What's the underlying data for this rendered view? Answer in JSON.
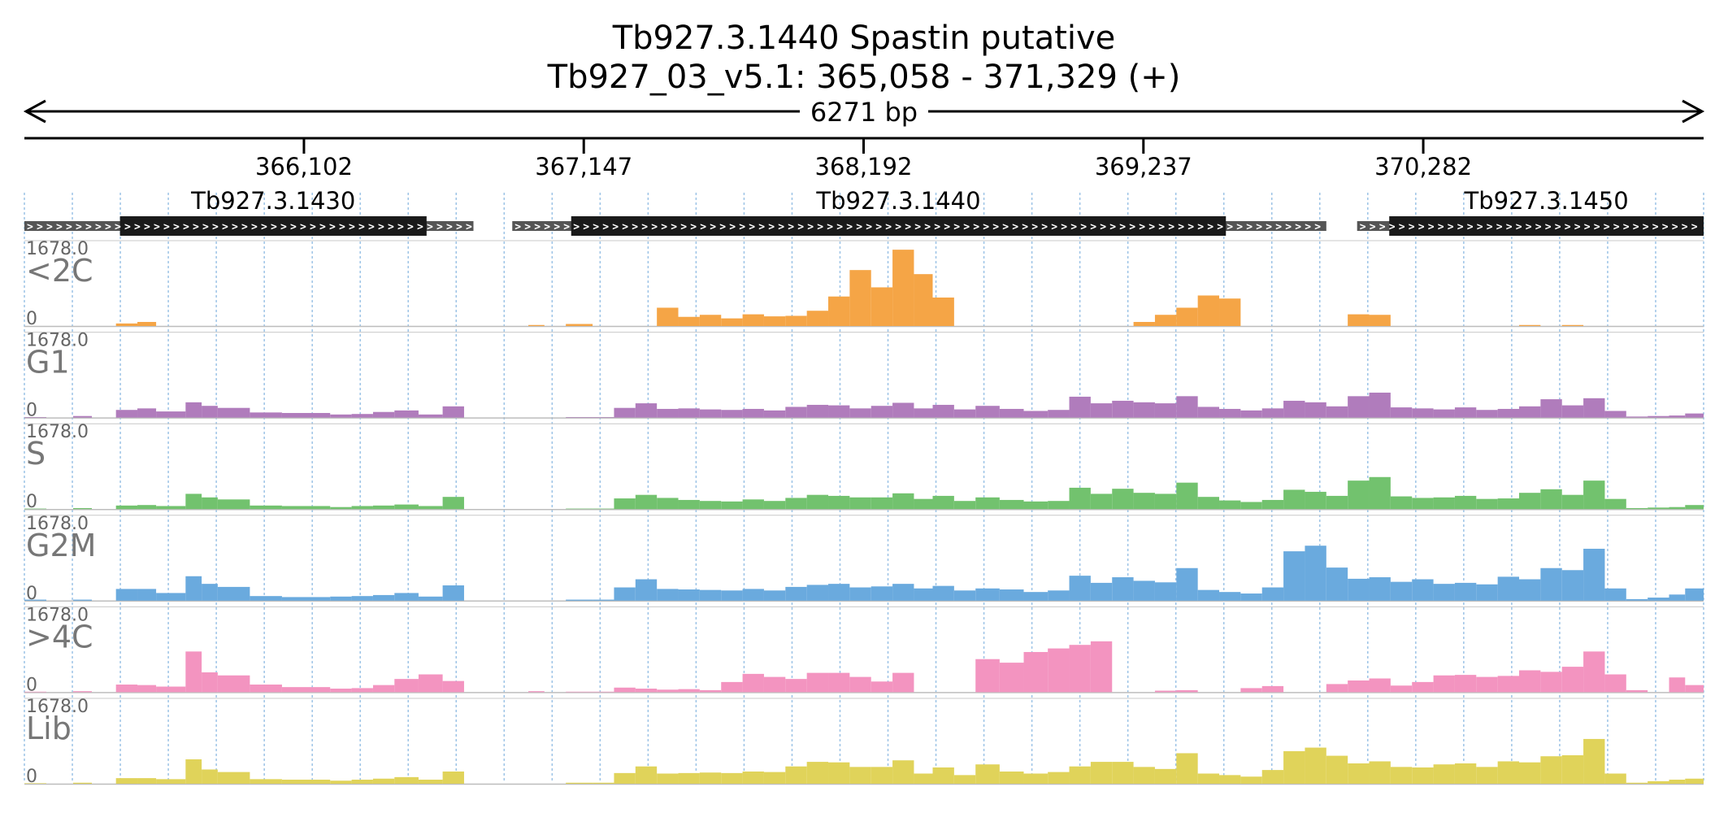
{
  "chart_data": {
    "type": "bar",
    "title": "Tb927.3.1440  Spastin  putative",
    "subtitle": "Tb927_03_v5.1: 365,058 - 371,329 (+)",
    "span_label": "6271 bp",
    "x_range": [
      365058,
      371329
    ],
    "x_ticks": [
      366102,
      367147,
      368192,
      369237,
      370282
    ],
    "x_tick_labels": [
      "366,102",
      "367,147",
      "368,192",
      "369,237",
      "370,282"
    ],
    "genes": [
      {
        "name": "Tb927.3.1430",
        "start": 365058,
        "cds_start": 365415,
        "cds_end": 366560,
        "end": 366735
      },
      {
        "name": "Tb927.3.1440",
        "start": 366880,
        "cds_start": 367100,
        "cds_end": 369545,
        "end": 369920
      },
      {
        "name": "Tb927.3.1450",
        "start": 370035,
        "cds_start": 370155,
        "cds_end": 371329,
        "end": 371329
      }
    ],
    "ylim": [
      0,
      1678.0
    ],
    "y_max_label": "1678.0",
    "y_min_label": "0",
    "segments": [
      {
        "start": 365058,
        "end": 365140
      },
      {
        "start": 365140,
        "end": 365240
      },
      {
        "start": 365240,
        "end": 365310
      },
      {
        "start": 365310,
        "end": 365400
      },
      {
        "start": 365400,
        "end": 365480
      },
      {
        "start": 365480,
        "end": 365550
      },
      {
        "start": 365550,
        "end": 365660
      },
      {
        "start": 365660,
        "end": 365720
      },
      {
        "start": 365720,
        "end": 365780
      },
      {
        "start": 365780,
        "end": 365900
      },
      {
        "start": 365900,
        "end": 366020
      },
      {
        "start": 366020,
        "end": 366200
      },
      {
        "start": 366200,
        "end": 366280
      },
      {
        "start": 366280,
        "end": 366360
      },
      {
        "start": 366360,
        "end": 366440
      },
      {
        "start": 366440,
        "end": 366530
      },
      {
        "start": 366530,
        "end": 366620
      },
      {
        "start": 366620,
        "end": 366700
      },
      {
        "start": 366700,
        "end": 366800
      },
      {
        "start": 366800,
        "end": 366940
      },
      {
        "start": 366940,
        "end": 367000
      },
      {
        "start": 367000,
        "end": 367080
      },
      {
        "start": 367080,
        "end": 367180
      },
      {
        "start": 367180,
        "end": 367260
      },
      {
        "start": 367260,
        "end": 367340
      },
      {
        "start": 367340,
        "end": 367420
      },
      {
        "start": 367420,
        "end": 367500
      },
      {
        "start": 367500,
        "end": 367580
      },
      {
        "start": 367580,
        "end": 367660
      },
      {
        "start": 367660,
        "end": 367740
      },
      {
        "start": 367740,
        "end": 367820
      },
      {
        "start": 367820,
        "end": 367900
      },
      {
        "start": 367900,
        "end": 367980
      },
      {
        "start": 367980,
        "end": 368060
      },
      {
        "start": 368060,
        "end": 368140
      },
      {
        "start": 368140,
        "end": 368220
      },
      {
        "start": 368220,
        "end": 368300
      },
      {
        "start": 368300,
        "end": 368380
      },
      {
        "start": 368380,
        "end": 368450
      },
      {
        "start": 368450,
        "end": 368530
      },
      {
        "start": 368530,
        "end": 368610
      },
      {
        "start": 368610,
        "end": 368700
      },
      {
        "start": 368700,
        "end": 368790
      },
      {
        "start": 368790,
        "end": 368880
      },
      {
        "start": 368880,
        "end": 368960
      },
      {
        "start": 368960,
        "end": 369040
      },
      {
        "start": 369040,
        "end": 369120
      },
      {
        "start": 369120,
        "end": 369200
      },
      {
        "start": 369200,
        "end": 369280
      },
      {
        "start": 369280,
        "end": 369360
      },
      {
        "start": 369360,
        "end": 369440
      },
      {
        "start": 369440,
        "end": 369520
      },
      {
        "start": 369520,
        "end": 369600
      },
      {
        "start": 369600,
        "end": 369680
      },
      {
        "start": 369680,
        "end": 369760
      },
      {
        "start": 369760,
        "end": 369840
      },
      {
        "start": 369840,
        "end": 369920
      },
      {
        "start": 369920,
        "end": 370000
      },
      {
        "start": 370000,
        "end": 370080
      },
      {
        "start": 370080,
        "end": 370160
      },
      {
        "start": 370160,
        "end": 370240
      },
      {
        "start": 370240,
        "end": 370320
      },
      {
        "start": 370320,
        "end": 370400
      },
      {
        "start": 370400,
        "end": 370480
      },
      {
        "start": 370480,
        "end": 370560
      },
      {
        "start": 370560,
        "end": 370640
      },
      {
        "start": 370640,
        "end": 370720
      },
      {
        "start": 370720,
        "end": 370800
      },
      {
        "start": 370800,
        "end": 370880
      },
      {
        "start": 370880,
        "end": 370960
      },
      {
        "start": 370960,
        "end": 371040
      },
      {
        "start": 371040,
        "end": 371120
      },
      {
        "start": 371120,
        "end": 371200
      },
      {
        "start": 371200,
        "end": 371260
      },
      {
        "start": 371260,
        "end": 371329
      }
    ],
    "series": [
      {
        "name": "<2C",
        "color": "#f5a546",
        "values": [
          0,
          0,
          0,
          0,
          50,
          80,
          0,
          0,
          0,
          0,
          0,
          0,
          0,
          0,
          0,
          0,
          0,
          0,
          0,
          0,
          20,
          0,
          40,
          0,
          0,
          0,
          360,
          180,
          220,
          150,
          230,
          190,
          200,
          300,
          580,
          1100,
          760,
          1500,
          1020,
          560,
          0,
          0,
          0,
          0,
          0,
          0,
          0,
          0,
          80,
          220,
          360,
          600,
          540,
          0,
          0,
          0,
          0,
          0,
          230,
          220,
          0,
          0,
          0,
          0,
          0,
          0,
          20,
          0,
          20,
          0,
          0,
          0,
          0,
          0,
          0
        ]
      },
      {
        "name": "G1",
        "color": "#b07cbc",
        "values": [
          10,
          0,
          30,
          0,
          150,
          180,
          120,
          300,
          230,
          190,
          100,
          90,
          60,
          70,
          110,
          140,
          60,
          220,
          0,
          0,
          0,
          0,
          10,
          10,
          190,
          280,
          170,
          180,
          160,
          150,
          170,
          140,
          210,
          250,
          240,
          180,
          230,
          290,
          180,
          250,
          160,
          230,
          170,
          130,
          150,
          410,
          280,
          330,
          300,
          280,
          420,
          210,
          170,
          140,
          180,
          330,
          300,
          220,
          420,
          490,
          200,
          180,
          160,
          200,
          150,
          170,
          220,
          360,
          240,
          380,
          130,
          20,
          30,
          40,
          80
        ]
      },
      {
        "name": "S",
        "color": "#72c26e",
        "values": [
          10,
          0,
          20,
          0,
          70,
          80,
          60,
          300,
          230,
          190,
          70,
          60,
          40,
          60,
          70,
          90,
          60,
          240,
          0,
          0,
          0,
          0,
          10,
          10,
          210,
          280,
          220,
          180,
          160,
          150,
          190,
          160,
          220,
          280,
          260,
          230,
          230,
          310,
          200,
          260,
          160,
          230,
          180,
          150,
          160,
          420,
          300,
          400,
          320,
          300,
          520,
          240,
          170,
          140,
          180,
          380,
          340,
          260,
          560,
          630,
          250,
          220,
          230,
          260,
          200,
          210,
          320,
          390,
          280,
          560,
          200,
          20,
          30,
          40,
          80
        ]
      },
      {
        "name": "G2M",
        "color": "#6aaade",
        "values": [
          20,
          0,
          20,
          0,
          230,
          230,
          150,
          480,
          330,
          270,
          90,
          70,
          80,
          90,
          110,
          150,
          80,
          300,
          0,
          0,
          0,
          0,
          20,
          20,
          260,
          420,
          230,
          220,
          210,
          200,
          230,
          200,
          270,
          310,
          330,
          260,
          280,
          330,
          240,
          290,
          200,
          240,
          220,
          170,
          200,
          490,
          350,
          460,
          390,
          360,
          640,
          210,
          170,
          140,
          260,
          970,
          1080,
          650,
          430,
          460,
          370,
          420,
          330,
          350,
          320,
          470,
          420,
          640,
          600,
          1020,
          240,
          30,
          60,
          120,
          240
        ]
      },
      {
        "name": ">4C",
        "color": "#f394c0",
        "values": [
          10,
          0,
          20,
          0,
          150,
          140,
          110,
          800,
          390,
          330,
          150,
          100,
          70,
          80,
          140,
          260,
          350,
          220,
          0,
          0,
          20,
          0,
          10,
          10,
          90,
          70,
          50,
          60,
          40,
          200,
          360,
          300,
          260,
          380,
          380,
          300,
          210,
          380,
          0,
          0,
          0,
          650,
          580,
          790,
          860,
          930,
          1000,
          0,
          0,
          30,
          40,
          0,
          0,
          80,
          120,
          0,
          0,
          160,
          230,
          270,
          130,
          200,
          330,
          340,
          300,
          320,
          430,
          400,
          500,
          800,
          350,
          40,
          0,
          290,
          140
        ]
      },
      {
        "name": "Lib",
        "color": "#e0d35a",
        "values": [
          10,
          0,
          20,
          0,
          110,
          110,
          90,
          480,
          280,
          230,
          90,
          80,
          60,
          80,
          100,
          130,
          80,
          240,
          0,
          0,
          0,
          0,
          20,
          20,
          210,
          340,
          200,
          210,
          220,
          210,
          240,
          230,
          340,
          430,
          420,
          330,
          330,
          460,
          200,
          320,
          170,
          380,
          240,
          200,
          230,
          340,
          430,
          430,
          330,
          290,
          600,
          200,
          170,
          140,
          270,
          640,
          710,
          550,
          400,
          440,
          330,
          320,
          380,
          400,
          330,
          440,
          420,
          540,
          560,
          880,
          200,
          20,
          50,
          80,
          100
        ]
      }
    ]
  }
}
